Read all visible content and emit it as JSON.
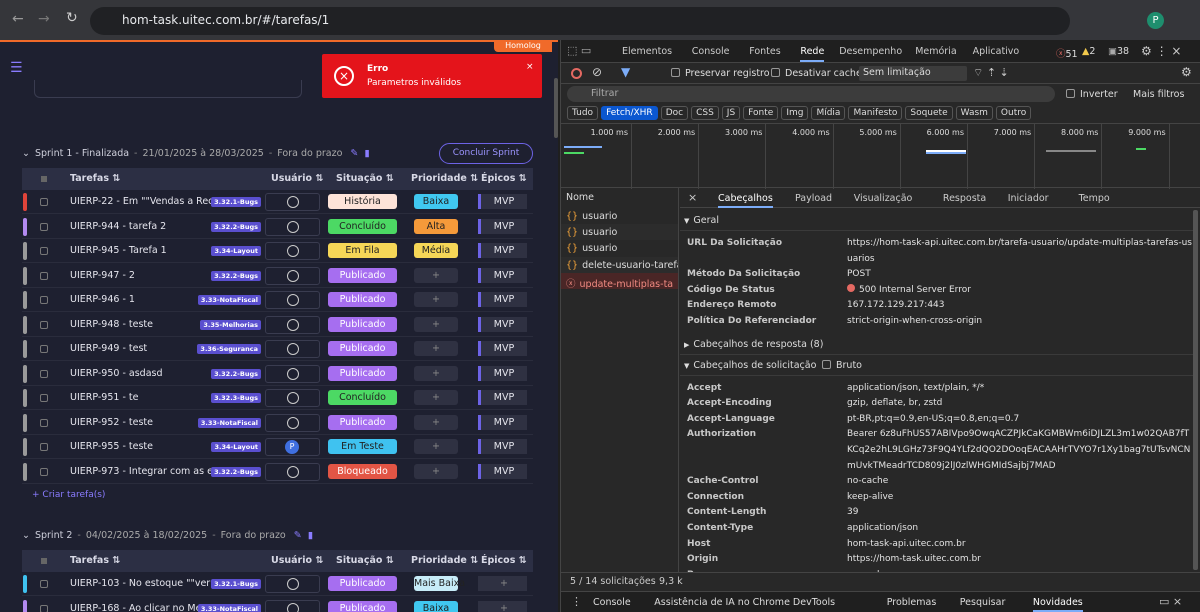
{
  "browser": {
    "url": "hom-task.uitec.com.br/#/tarefas/1",
    "profile": "P"
  },
  "app": {
    "env_badge": "Homolog",
    "toast": {
      "title": "Erro",
      "message": "Parametros inválidos"
    },
    "sprints": [
      {
        "title": "Sprint 1 - Finalizada",
        "dates": "21/01/2025 à 28/03/2025",
        "status": "Fora do prazo",
        "action": "Concluir Sprint",
        "add": "Criar tarefa(s)",
        "columns": [
          "Tarefas",
          "Usuário",
          "Situação",
          "Prioridade",
          "Épicos"
        ],
        "tasks": [
          {
            "name": "UIERP-22 - Em \"\"Vendas a Rece...",
            "tag": "3.32.1-Bugs",
            "status": "História",
            "priority": "Baixa",
            "epic": "MVP",
            "color": "#e0443a"
          },
          {
            "name": "UIERP-944 - tarefa 2",
            "tag": "3.32.2-Bugs",
            "status": "Concluído",
            "priority": "Alta",
            "epic": "MVP",
            "color": "#b38af0"
          },
          {
            "name": "UIERP-945 - Tarefa 1",
            "tag": "3.34-Layout",
            "status": "Em Fila",
            "priority": "Média",
            "epic": "MVP",
            "color": "#9a9a9a"
          },
          {
            "name": "UIERP-947 - 2",
            "tag": "3.32.2-Bugs",
            "status": "Publicado",
            "priority": "+",
            "epic": "MVP",
            "color": "#9a9a9a"
          },
          {
            "name": "UIERP-946 - 1",
            "tag": "3.33-NotaFiscal",
            "status": "Publicado",
            "priority": "+",
            "epic": "MVP",
            "color": "#9a9a9a"
          },
          {
            "name": "UIERP-948 - teste",
            "tag": "3.35-Melhorias",
            "status": "Publicado",
            "priority": "+",
            "epic": "MVP",
            "color": "#9a9a9a"
          },
          {
            "name": "UIERP-949 - test",
            "tag": "3.36-Seguranca",
            "status": "Publicado",
            "priority": "+",
            "epic": "MVP",
            "color": "#9a9a9a"
          },
          {
            "name": "UIERP-950 - asdasd",
            "tag": "3.32.2-Bugs",
            "status": "Publicado",
            "priority": "+",
            "epic": "MVP",
            "color": "#9a9a9a"
          },
          {
            "name": "UIERP-951 - te",
            "tag": "3.32.3-Bugs",
            "status": "Concluído",
            "priority": "+",
            "epic": "MVP",
            "color": "#9a9a9a"
          },
          {
            "name": "UIERP-952 - teste",
            "tag": "3.33-NotaFiscal",
            "status": "Publicado",
            "priority": "+",
            "epic": "MVP",
            "color": "#9a9a9a"
          },
          {
            "name": "UIERP-955 - teste",
            "tag": "3.34-Layout",
            "user": "P",
            "status": "Em Teste",
            "priority": "+",
            "epic": "MVP",
            "color": "#9a9a9a"
          },
          {
            "name": "UIERP-973 - Integrar com as e...",
            "tag": "3.32.2-Bugs",
            "status": "Bloqueado",
            "priority": "+",
            "epic": "MVP",
            "color": "#9a9a9a"
          }
        ]
      },
      {
        "title": "Sprint 2",
        "dates": "04/02/2025 à 18/02/2025",
        "status": "Fora do prazo",
        "columns": [
          "Tarefas",
          "Usuário",
          "Situação",
          "Prioridade",
          "Épicos"
        ],
        "tasks": [
          {
            "name": "UIERP-103 - No estoque \"\"ver ...",
            "tag": "3.32.1-Bugs",
            "status": "Publicado",
            "priority": "Mais Baixa",
            "epic": "+",
            "color": "#3fc2f0"
          },
          {
            "name": "UIERP-168 - Ao clicar no Menu...",
            "tag": "3.33-NotaFiscal",
            "status": "Publicado",
            "priority": "Baixa",
            "epic": "+",
            "color": "#b38af0"
          }
        ]
      }
    ]
  },
  "devtools": {
    "tabs": [
      "Elementos",
      "Console",
      "Fontes",
      "Rede",
      "Desempenho",
      "Memória",
      "Aplicativo"
    ],
    "counts": [
      51,
      2,
      38
    ],
    "toolbar": {
      "preserve": "Preservar registro",
      "cache": "Desativar cache",
      "throttle": "Sem limitação",
      "filter": "Filtrar",
      "invert": "Inverter",
      "more": "Mais filtros"
    },
    "chips": [
      "Tudo",
      "Fetch/XHR",
      "Doc",
      "CSS",
      "JS",
      "Fonte",
      "Img",
      "Mídia",
      "Manifesto",
      "Soquete",
      "Wasm",
      "Outro"
    ],
    "timeline": [
      "1.000 ms",
      "2.000 ms",
      "3.000 ms",
      "4.000 ms",
      "5.000 ms",
      "6.000 ms",
      "7.000 ms",
      "8.000 ms",
      "9.000 ms"
    ],
    "requests": {
      "header": "Nome",
      "items": [
        "usuario",
        "usuario",
        "usuario",
        "delete-usuario-tarefa",
        "update-multiplas-ta"
      ]
    },
    "detail_tabs": [
      "Cabeçalhos",
      "Payload",
      "Visualização",
      "Resposta",
      "Iniciador",
      "Tempo"
    ],
    "general": {
      "title": "Geral",
      "rows": [
        [
          "URL Da Solicitação",
          "https://hom-task-api.uitec.com.br/tarefa-usuario/update-multiplas-tarefas-usuarios"
        ],
        [
          "Método Da Solicitação",
          "POST"
        ],
        [
          "Código De Status",
          "500 Internal Server Error"
        ],
        [
          "Endereço Remoto",
          "167.172.129.217:443"
        ],
        [
          "Política Do Referenciador",
          "strict-origin-when-cross-origin"
        ]
      ]
    },
    "response_headers": "Cabeçalhos de resposta (8)",
    "request_headers": {
      "title": "Cabeçalhos de solicitação",
      "raw": "Bruto",
      "rows": [
        [
          "Accept",
          "application/json, text/plain, */*"
        ],
        [
          "Accept-Encoding",
          "gzip, deflate, br, zstd"
        ],
        [
          "Accept-Language",
          "pt-BR,pt;q=0.9,en-US;q=0.8,en;q=0.7"
        ],
        [
          "Authorization",
          "Bearer 6z8uFhUS57ABIVpo9OwqACZPJkCaKGMBWm6iDJLZL3m1w02QAB7fTKCq2e2hL9LGHz73F9Q4YLf2dQO2DOoqEACAAHrTVYO7r1Xy1bag7tUTsvNCNmUvkTMeadrTCD809j2lJ0zlWHGMIdSajbj7MAD"
        ],
        [
          "Cache-Control",
          "no-cache"
        ],
        [
          "Connection",
          "keep-alive"
        ],
        [
          "Content-Length",
          "39"
        ],
        [
          "Content-Type",
          "application/json"
        ],
        [
          "Host",
          "hom-task-api.uitec.com.br"
        ],
        [
          "Origin",
          "https://hom-task.uitec.com.br"
        ],
        [
          "Pragma",
          "no-cache"
        ]
      ]
    },
    "status_bar": [
      "5 / 14 solicitações",
      "9,3 k"
    ],
    "drawer": [
      "Console",
      "Assistência de IA no Chrome DevTools",
      "Problemas",
      "Pesquisar",
      "Novidades"
    ]
  }
}
